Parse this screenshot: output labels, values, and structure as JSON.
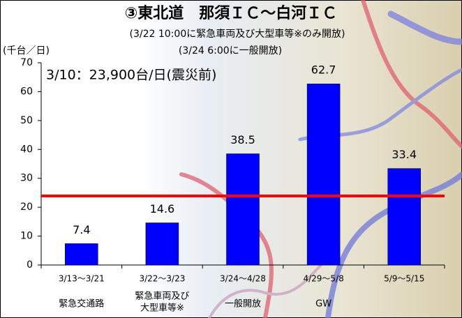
{
  "chart_data": {
    "type": "bar",
    "title": "③東北道　那須ＩＣ～白河ＩＣ",
    "subtitle": [
      "(3/22 10:00に緊急車両及び大型車等※のみ開放)",
      "(3/24 6:00に一般開放)"
    ],
    "y_label": "(千台／日)",
    "categories": [
      "3/13～3/21",
      "3/22～3/23",
      "3/24～4/28",
      "4/29～5/8",
      "5/9～5/15"
    ],
    "category_notes": [
      [
        "緊急交通路"
      ],
      [
        "緊急車両及び",
        "大型車等※"
      ],
      [
        "一般開放"
      ],
      [
        "GW"
      ],
      null
    ],
    "values": [
      7.4,
      14.6,
      38.5,
      62.7,
      33.4
    ],
    "color": "#0000ff",
    "reference_line": {
      "value": 23.9,
      "label": "3/10：23,900台/日(震災前)",
      "color": "#ff0000"
    },
    "ylim": [
      0,
      70
    ],
    "yticks": [
      0,
      10,
      20,
      30,
      40,
      50,
      60,
      70
    ]
  }
}
